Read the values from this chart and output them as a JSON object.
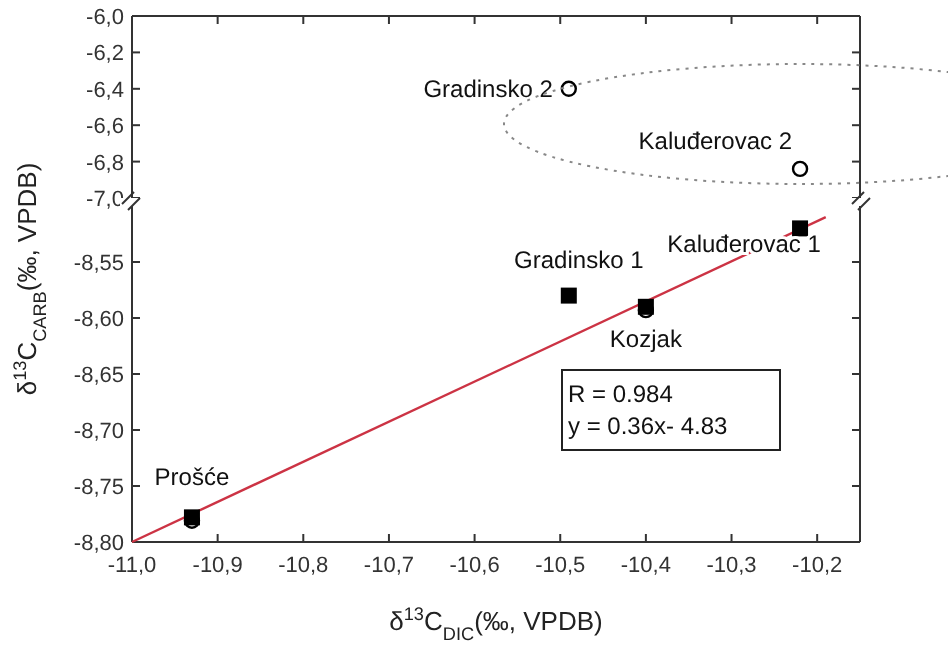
{
  "chart_data": [
    {
      "type": "scatter",
      "xlim": [
        -11.0,
        -10.15
      ],
      "xticks": [
        {
          "value": -11.0,
          "label": null
        },
        {
          "value": -10.9,
          "label": null
        },
        {
          "value": -10.8,
          "label": null
        },
        {
          "value": -10.7,
          "label": null
        },
        {
          "value": -10.6,
          "label": null
        },
        {
          "value": -10.5,
          "label": null
        },
        {
          "value": -10.4,
          "label": null
        },
        {
          "value": -10.3,
          "label": null
        },
        {
          "value": -10.2,
          "label": null
        }
      ],
      "ylim": [
        -7.0,
        -6.0
      ],
      "yticks": [
        {
          "value": -7.0,
          "label": "-7,0"
        },
        {
          "value": -6.8,
          "label": "-6,8"
        },
        {
          "value": -6.6,
          "label": "-6,6"
        },
        {
          "value": -6.4,
          "label": "-6,4"
        },
        {
          "value": -6.2,
          "label": "-6,2"
        },
        {
          "value": -6.0,
          "label": "-6,0"
        }
      ],
      "tick_labels": "y",
      "grid": false,
      "series": [
        {
          "marker": "circle",
          "color": "#000000",
          "x": [
            -10.49,
            -10.22
          ],
          "values": [
            -6.4,
            -6.84
          ]
        }
      ],
      "annotations": [
        {
          "text": "Gradinsko 2",
          "x": -10.49,
          "y": -6.4
        },
        {
          "text": "Kaluđerovac 2",
          "x": -10.22,
          "y": -6.84
        }
      ]
    },
    {
      "type": "scatter",
      "xlim": [
        -11.0,
        -10.15
      ],
      "xticks": [
        {
          "value": -11.0,
          "label": "-11,0"
        },
        {
          "value": -10.9,
          "label": "-10,9"
        },
        {
          "value": -10.8,
          "label": "-10,8"
        },
        {
          "value": -10.7,
          "label": "-10,7"
        },
        {
          "value": -10.6,
          "label": "-10,6"
        },
        {
          "value": -10.5,
          "label": "-10,5"
        },
        {
          "value": -10.4,
          "label": "-10,4"
        },
        {
          "value": -10.3,
          "label": "-10,3"
        },
        {
          "value": -10.2,
          "label": "-10,2"
        }
      ],
      "ylim": [
        -8.8,
        -8.5
      ],
      "yticks": [
        {
          "value": -8.8,
          "label": "-8,80"
        },
        {
          "value": -8.75,
          "label": "-8,75"
        },
        {
          "value": -8.7,
          "label": "-8,70"
        },
        {
          "value": -8.65,
          "label": "-8,65"
        },
        {
          "value": -8.6,
          "label": "-8,60"
        },
        {
          "value": -8.55,
          "label": "-8,55"
        }
      ],
      "grid": false,
      "xlabel": "δ$^{13}$C$_{DIC}$(‰, VPDB)",
      "ylabel": "δ$^{13}$C$_{CARB}$(‰, VPDB)",
      "series": [
        {
          "type": "line",
          "color": "#cc3344",
          "line_style": "solid",
          "marker": "none",
          "x": [
            -11.0,
            -10.19
          ],
          "values": [
            -8.8,
            -8.51
          ]
        },
        {
          "marker": "square",
          "color": "#000000",
          "x": [
            -10.49,
            -10.4,
            -10.22,
            -10.93
          ],
          "values": [
            -8.58,
            -8.59,
            -8.52,
            -8.778
          ]
        },
        {
          "marker": "circle",
          "color": "#000000",
          "x": [
            -10.4,
            -10.93
          ],
          "values": [
            -8.593,
            -8.781
          ]
        }
      ],
      "annotations": [
        {
          "text": "Gradinsko 1",
          "x": -10.49,
          "y": -8.58
        },
        {
          "text": "Kozjak",
          "x": -10.4,
          "y": -8.59
        },
        {
          "text": "Kaluđerovac 1",
          "x": -10.22,
          "y": -8.52
        },
        {
          "text": "Prošće",
          "x": -10.93,
          "y": -8.778
        },
        "R = 0.984",
        "y = 0.36x- 4.83"
      ]
    }
  ]
}
